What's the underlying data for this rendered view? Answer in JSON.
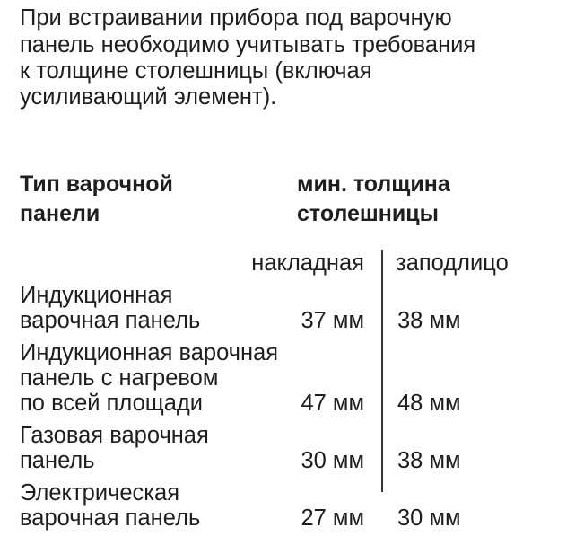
{
  "intro": [
    "При встраивании прибора под варочную",
    "панель необходимо учитывать требования",
    "к толщине столешницы (включая",
    "усиливающий элемент)."
  ],
  "header": {
    "type_label": [
      "Тип варочной",
      "панели"
    ],
    "thickness_label": [
      "мин. толщина",
      "столешницы"
    ]
  },
  "columns": {
    "overlay": "накладная",
    "flush": "заподлицо"
  },
  "rows": [
    {
      "name": [
        "Индукционная",
        "варочная панель"
      ],
      "overlay": "37 мм",
      "flush": "38 мм"
    },
    {
      "name": [
        "Индукционная варочная",
        "панель с нагревом",
        "по всей площади"
      ],
      "overlay": "47 мм",
      "flush": "48 мм"
    },
    {
      "name": [
        "Газовая варочная",
        "панель"
      ],
      "overlay": "30 мм",
      "flush": "38 мм"
    },
    {
      "name": [
        "Электрическая",
        "варочная панель"
      ],
      "overlay": "27 мм",
      "flush": "30 мм"
    }
  ]
}
